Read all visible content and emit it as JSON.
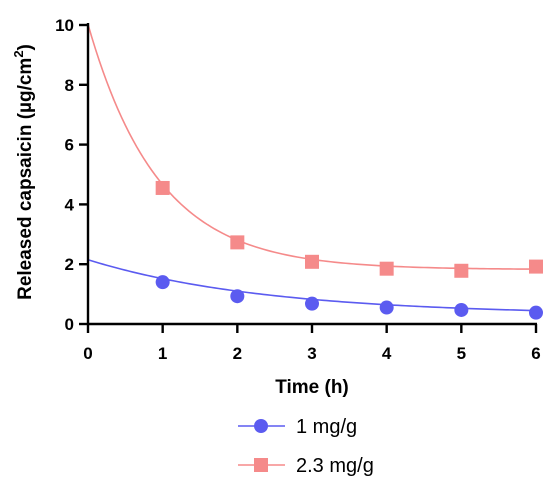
{
  "chart_data": {
    "type": "line",
    "xlabel": "Time (h)",
    "ylabel_prefix": "Released capsaicin (",
    "ylabel_unit": "µg/cm",
    "ylabel_sup": "2",
    "ylabel_suffix": ")",
    "xlim": [
      0,
      6
    ],
    "ylim": [
      0,
      10
    ],
    "xticks": [
      "0",
      "1",
      "2",
      "3",
      "4",
      "5",
      "6"
    ],
    "yticks": [
      "0",
      "2",
      "4",
      "6",
      "8",
      "10"
    ],
    "grid": false,
    "legend_position": "bottom-center",
    "series": [
      {
        "name": "1 mg/g",
        "color": "#5b5bf0",
        "marker": "circle",
        "x": [
          1,
          2,
          3,
          4,
          5,
          6
        ],
        "y": [
          1.4,
          0.93,
          0.68,
          0.55,
          0.47,
          0.38
        ],
        "fit": {
          "plateau": 0.3,
          "span": 1.85,
          "k": 0.42
        }
      },
      {
        "name": "2.3 mg/g",
        "color": "#f58a8a",
        "marker": "square",
        "x": [
          1,
          2,
          3,
          4,
          5,
          6
        ],
        "y": [
          4.55,
          2.73,
          2.08,
          1.85,
          1.78,
          1.92
        ],
        "fit": {
          "plateau": 1.82,
          "span": 8.2,
          "k": 1.06
        }
      }
    ]
  }
}
